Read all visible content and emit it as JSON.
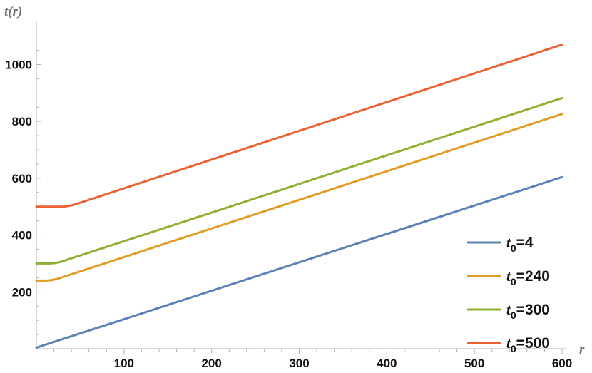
{
  "chart_data": {
    "type": "line",
    "xlabel": "r",
    "ylabel": "t(r)",
    "xlim": [
      0,
      600
    ],
    "ylim": [
      0,
      1100
    ],
    "x_ticks": [
      100,
      200,
      300,
      400,
      500,
      600
    ],
    "y_ticks": [
      200,
      400,
      600,
      800,
      1000
    ],
    "grid": false,
    "legend_position": "bottom-right",
    "series": [
      {
        "name": "t0=4",
        "label_base": "t",
        "label_sub": "0",
        "label_value": "=4",
        "color": "#5e81b5",
        "x": [
          0,
          600
        ],
        "y": [
          4,
          604
        ]
      },
      {
        "name": "t0=240",
        "label_base": "t",
        "label_sub": "0",
        "label_value": "=240",
        "color": "#e19c24",
        "x": [
          0,
          12,
          18,
          24,
          600
        ],
        "y": [
          240,
          240,
          242,
          246,
          826
        ]
      },
      {
        "name": "t0=300",
        "label_base": "t",
        "label_sub": "0",
        "label_value": "=300",
        "color": "#8fb032",
        "x": [
          0,
          16,
          22,
          28,
          600
        ],
        "y": [
          300,
          300,
          302,
          306,
          882
        ]
      },
      {
        "name": "t0=500",
        "label_base": "t",
        "label_sub": "0",
        "label_value": "=500",
        "color": "#eb6235",
        "x": [
          0,
          30,
          36,
          42,
          600
        ],
        "y": [
          500,
          500,
          502,
          506,
          1070
        ]
      }
    ]
  }
}
